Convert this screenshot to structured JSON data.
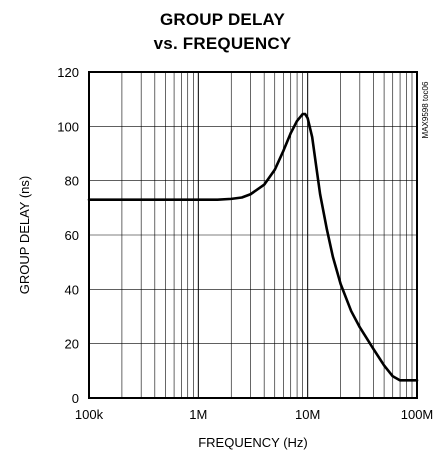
{
  "chart_data": {
    "type": "line",
    "title": "GROUP DELAY",
    "subtitle": "vs. FREQUENCY",
    "xlabel": "FREQUENCY (Hz)",
    "ylabel": "GROUP DELAY (ns)",
    "x_scale": "log",
    "xlim": [
      100000,
      100000000
    ],
    "ylim": [
      0,
      120
    ],
    "x_ticks": [
      100000,
      1000000,
      10000000,
      100000000
    ],
    "x_tick_labels": [
      "100k",
      "1M",
      "10M",
      "100M"
    ],
    "y_ticks": [
      0,
      20,
      40,
      60,
      80,
      100,
      120
    ],
    "y_tick_labels": [
      "0",
      "20",
      "40",
      "60",
      "80",
      "100",
      "120"
    ],
    "grid": true,
    "annotation": "MAX9598 toc06",
    "series": [
      {
        "x": [
          100000,
          300000,
          1000000,
          1500000,
          2000000,
          2500000,
          3000000,
          4000000,
          5000000,
          6000000,
          7000000,
          8000000,
          9000000,
          9500000,
          10000000,
          11000000,
          12000000,
          13000000,
          15000000,
          17000000,
          20000000,
          25000000,
          30000000,
          40000000,
          50000000,
          60000000,
          70000000,
          80000000,
          90000000,
          100000000
        ],
        "values": [
          73,
          73,
          73,
          73,
          73.3,
          73.8,
          75,
          78.5,
          84,
          91,
          97.5,
          102,
          104.5,
          104.5,
          103,
          96,
          85,
          75,
          62,
          52,
          42,
          32,
          26,
          18,
          12,
          8,
          6.5,
          6.5,
          6.5,
          6.5
        ]
      }
    ]
  }
}
